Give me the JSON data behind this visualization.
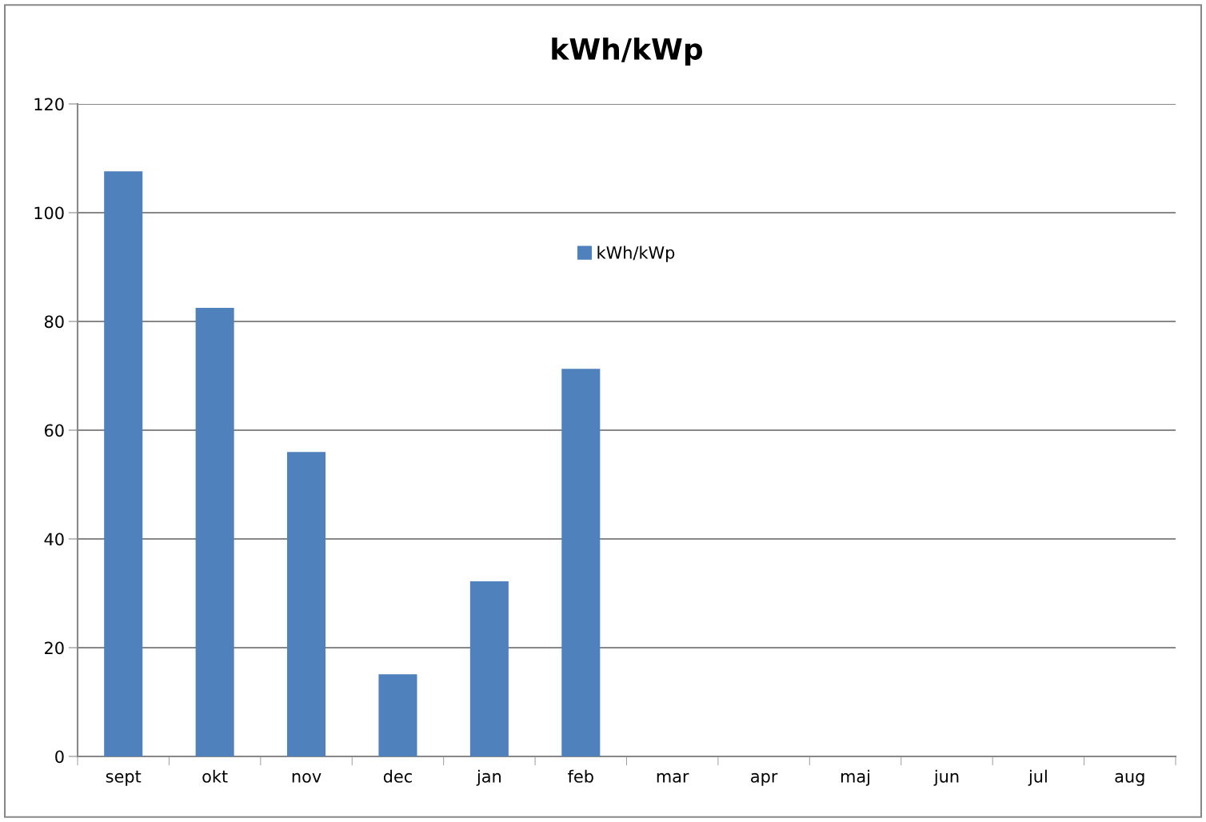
{
  "chart_data": {
    "type": "bar",
    "title": "kWh/kWp",
    "categories": [
      "sept",
      "okt",
      "nov",
      "dec",
      "jan",
      "feb",
      "mar",
      "apr",
      "maj",
      "jun",
      "jul",
      "aug"
    ],
    "series": [
      {
        "name": "kWh/kWp",
        "color": "#4f81bd",
        "values": [
          107.6,
          82.5,
          56.0,
          15.1,
          32.2,
          71.3,
          null,
          null,
          null,
          null,
          null,
          null
        ]
      }
    ],
    "ylim": [
      0,
      120
    ],
    "yticks": [
      0,
      20,
      40,
      60,
      80,
      100,
      120
    ],
    "grid": "y",
    "legend": "top"
  }
}
